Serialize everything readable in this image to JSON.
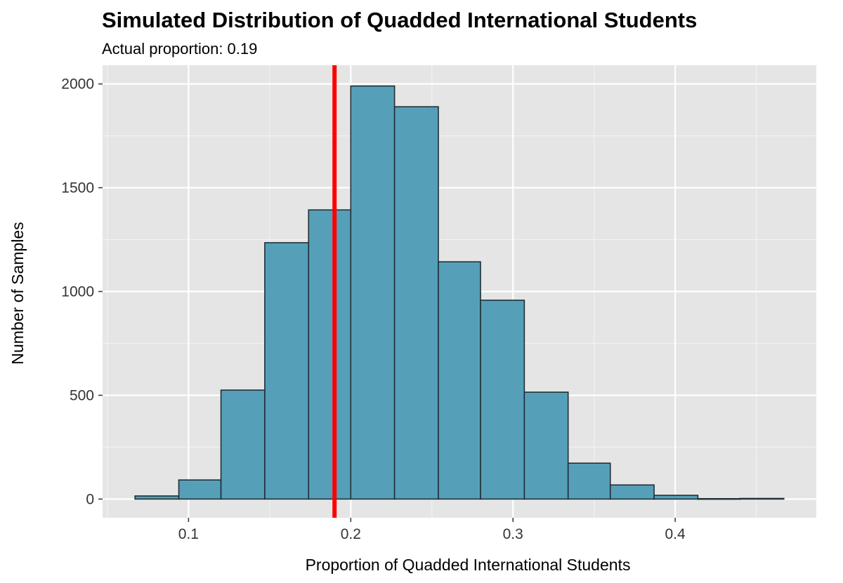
{
  "chart_data": {
    "type": "bar",
    "title": "Simulated Distribution of Quadded International Students",
    "subtitle": "Actual proportion: 0.19",
    "xlabel": "Proportion of Quadded International Students",
    "ylabel": "Number of Samples",
    "bins": [
      {
        "x0": 0.067,
        "x1": 0.094,
        "count": 15
      },
      {
        "x0": 0.094,
        "x1": 0.12,
        "count": 92
      },
      {
        "x0": 0.12,
        "x1": 0.147,
        "count": 525
      },
      {
        "x0": 0.147,
        "x1": 0.174,
        "count": 1235
      },
      {
        "x0": 0.174,
        "x1": 0.2,
        "count": 1393
      },
      {
        "x0": 0.2,
        "x1": 0.227,
        "count": 1990
      },
      {
        "x0": 0.227,
        "x1": 0.254,
        "count": 1890
      },
      {
        "x0": 0.254,
        "x1": 0.28,
        "count": 1143
      },
      {
        "x0": 0.28,
        "x1": 0.307,
        "count": 958
      },
      {
        "x0": 0.307,
        "x1": 0.334,
        "count": 515
      },
      {
        "x0": 0.334,
        "x1": 0.36,
        "count": 173
      },
      {
        "x0": 0.36,
        "x1": 0.387,
        "count": 68
      },
      {
        "x0": 0.387,
        "x1": 0.414,
        "count": 18
      },
      {
        "x0": 0.414,
        "x1": 0.44,
        "count": 2
      },
      {
        "x0": 0.44,
        "x1": 0.467,
        "count": 3
      }
    ],
    "xlim": [
      0.047,
      0.487
    ],
    "ylim": [
      -90,
      2090
    ],
    "x_ticks": [
      0.1,
      0.2,
      0.3,
      0.4
    ],
    "x_tick_labels": [
      "0.1",
      "0.2",
      "0.3",
      "0.4"
    ],
    "y_ticks": [
      0,
      500,
      1000,
      1500,
      2000
    ],
    "y_tick_labels": [
      "0",
      "500",
      "1000",
      "1500",
      "2000"
    ],
    "reference_line": {
      "x": 0.19,
      "color": "#ff0000"
    },
    "bar_fill": "#569fb9",
    "bar_stroke": "#1f2f36",
    "panel_background": "#e5e5e5",
    "grid": true,
    "legend": "none"
  }
}
